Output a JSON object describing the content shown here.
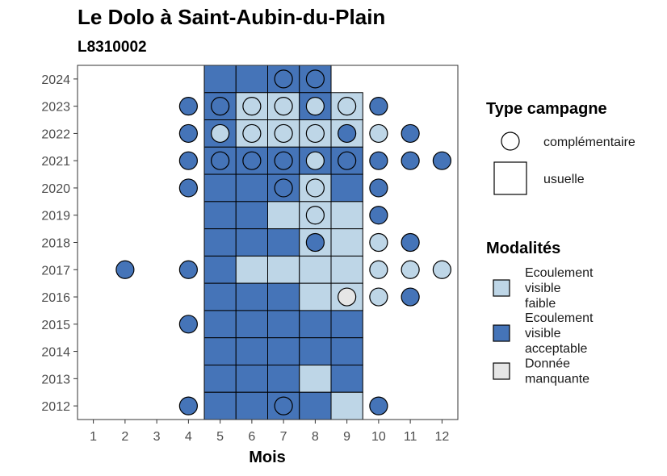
{
  "chart_data": {
    "type": "heatmap",
    "title": "Le Dolo à Saint-Aubin-du-Plain",
    "subtitle": "L8310002",
    "xlabel": "Mois",
    "ylabel": "",
    "x_ticks": [
      "1",
      "2",
      "3",
      "4",
      "5",
      "6",
      "7",
      "8",
      "9",
      "10",
      "11",
      "12"
    ],
    "y_ticks": [
      "2012",
      "2013",
      "2014",
      "2015",
      "2016",
      "2017",
      "2018",
      "2019",
      "2020",
      "2021",
      "2022",
      "2023",
      "2024"
    ],
    "xlim": [
      0.5,
      12.5
    ],
    "ylim": [
      2011.5,
      2024.5
    ],
    "grid": false,
    "legend_placement": "right",
    "colors": {
      "faible": "#bed6e7",
      "acceptable": "#4574b8",
      "manquante": "#e6e6e6",
      "border": "#000000"
    },
    "legend_shape": {
      "title": "Type campagne",
      "items": [
        {
          "shape": "circle",
          "label": "complémentaire"
        },
        {
          "shape": "square",
          "label": "usuelle"
        }
      ]
    },
    "legend_fill": {
      "title": "Modalités",
      "items": [
        {
          "key": "faible",
          "label_lines": [
            "Ecoulement",
            "visible",
            "faible"
          ]
        },
        {
          "key": "acceptable",
          "label_lines": [
            "Ecoulement",
            "visible",
            "acceptable"
          ]
        },
        {
          "key": "manquante",
          "label_lines": [
            "Donnée",
            "manquante"
          ]
        }
      ]
    },
    "usuelle": [
      {
        "year": 2024,
        "month": 5,
        "m": "acceptable"
      },
      {
        "year": 2024,
        "month": 6,
        "m": "acceptable"
      },
      {
        "year": 2024,
        "month": 7,
        "m": "acceptable"
      },
      {
        "year": 2024,
        "month": 8,
        "m": "acceptable"
      },
      {
        "year": 2023,
        "month": 5,
        "m": "acceptable"
      },
      {
        "year": 2023,
        "month": 6,
        "m": "faible"
      },
      {
        "year": 2023,
        "month": 7,
        "m": "faible"
      },
      {
        "year": 2023,
        "month": 8,
        "m": "acceptable"
      },
      {
        "year": 2023,
        "month": 9,
        "m": "faible"
      },
      {
        "year": 2022,
        "month": 5,
        "m": "acceptable"
      },
      {
        "year": 2022,
        "month": 6,
        "m": "faible"
      },
      {
        "year": 2022,
        "month": 7,
        "m": "faible"
      },
      {
        "year": 2022,
        "month": 8,
        "m": "faible"
      },
      {
        "year": 2022,
        "month": 9,
        "m": "faible"
      },
      {
        "year": 2021,
        "month": 5,
        "m": "acceptable"
      },
      {
        "year": 2021,
        "month": 6,
        "m": "acceptable"
      },
      {
        "year": 2021,
        "month": 7,
        "m": "acceptable"
      },
      {
        "year": 2021,
        "month": 8,
        "m": "acceptable"
      },
      {
        "year": 2021,
        "month": 9,
        "m": "acceptable"
      },
      {
        "year": 2020,
        "month": 5,
        "m": "acceptable"
      },
      {
        "year": 2020,
        "month": 6,
        "m": "acceptable"
      },
      {
        "year": 2020,
        "month": 7,
        "m": "acceptable"
      },
      {
        "year": 2020,
        "month": 8,
        "m": "faible"
      },
      {
        "year": 2020,
        "month": 9,
        "m": "acceptable"
      },
      {
        "year": 2019,
        "month": 5,
        "m": "acceptable"
      },
      {
        "year": 2019,
        "month": 6,
        "m": "acceptable"
      },
      {
        "year": 2019,
        "month": 7,
        "m": "faible"
      },
      {
        "year": 2019,
        "month": 8,
        "m": "faible"
      },
      {
        "year": 2019,
        "month": 9,
        "m": "faible"
      },
      {
        "year": 2018,
        "month": 5,
        "m": "acceptable"
      },
      {
        "year": 2018,
        "month": 6,
        "m": "acceptable"
      },
      {
        "year": 2018,
        "month": 7,
        "m": "acceptable"
      },
      {
        "year": 2018,
        "month": 8,
        "m": "faible"
      },
      {
        "year": 2018,
        "month": 9,
        "m": "faible"
      },
      {
        "year": 2017,
        "month": 5,
        "m": "acceptable"
      },
      {
        "year": 2017,
        "month": 6,
        "m": "faible"
      },
      {
        "year": 2017,
        "month": 7,
        "m": "faible"
      },
      {
        "year": 2017,
        "month": 8,
        "m": "faible"
      },
      {
        "year": 2017,
        "month": 9,
        "m": "faible"
      },
      {
        "year": 2016,
        "month": 5,
        "m": "acceptable"
      },
      {
        "year": 2016,
        "month": 6,
        "m": "acceptable"
      },
      {
        "year": 2016,
        "month": 7,
        "m": "acceptable"
      },
      {
        "year": 2016,
        "month": 8,
        "m": "faible"
      },
      {
        "year": 2016,
        "month": 9,
        "m": "faible"
      },
      {
        "year": 2015,
        "month": 5,
        "m": "acceptable"
      },
      {
        "year": 2015,
        "month": 6,
        "m": "acceptable"
      },
      {
        "year": 2015,
        "month": 7,
        "m": "acceptable"
      },
      {
        "year": 2015,
        "month": 8,
        "m": "acceptable"
      },
      {
        "year": 2015,
        "month": 9,
        "m": "acceptable"
      },
      {
        "year": 2014,
        "month": 5,
        "m": "acceptable"
      },
      {
        "year": 2014,
        "month": 6,
        "m": "acceptable"
      },
      {
        "year": 2014,
        "month": 7,
        "m": "acceptable"
      },
      {
        "year": 2014,
        "month": 8,
        "m": "acceptable"
      },
      {
        "year": 2014,
        "month": 9,
        "m": "acceptable"
      },
      {
        "year": 2013,
        "month": 5,
        "m": "acceptable"
      },
      {
        "year": 2013,
        "month": 6,
        "m": "acceptable"
      },
      {
        "year": 2013,
        "month": 7,
        "m": "acceptable"
      },
      {
        "year": 2013,
        "month": 8,
        "m": "faible"
      },
      {
        "year": 2013,
        "month": 9,
        "m": "acceptable"
      },
      {
        "year": 2012,
        "month": 5,
        "m": "acceptable"
      },
      {
        "year": 2012,
        "month": 6,
        "m": "acceptable"
      },
      {
        "year": 2012,
        "month": 7,
        "m": "acceptable"
      },
      {
        "year": 2012,
        "month": 8,
        "m": "acceptable"
      },
      {
        "year": 2012,
        "month": 9,
        "m": "faible"
      }
    ],
    "complementaire": [
      {
        "year": 2024,
        "month": 7,
        "m": "acceptable"
      },
      {
        "year": 2024,
        "month": 8,
        "m": "acceptable"
      },
      {
        "year": 2023,
        "month": 4,
        "m": "acceptable"
      },
      {
        "year": 2023,
        "month": 5,
        "m": "acceptable"
      },
      {
        "year": 2023,
        "month": 6,
        "m": "faible"
      },
      {
        "year": 2023,
        "month": 7,
        "m": "faible"
      },
      {
        "year": 2023,
        "month": 8,
        "m": "faible"
      },
      {
        "year": 2023,
        "month": 9,
        "m": "faible"
      },
      {
        "year": 2023,
        "month": 10,
        "m": "acceptable"
      },
      {
        "year": 2022,
        "month": 4,
        "m": "acceptable"
      },
      {
        "year": 2022,
        "month": 5,
        "m": "faible"
      },
      {
        "year": 2022,
        "month": 6,
        "m": "faible"
      },
      {
        "year": 2022,
        "month": 7,
        "m": "faible"
      },
      {
        "year": 2022,
        "month": 8,
        "m": "faible"
      },
      {
        "year": 2022,
        "month": 9,
        "m": "acceptable"
      },
      {
        "year": 2022,
        "month": 10,
        "m": "faible"
      },
      {
        "year": 2022,
        "month": 11,
        "m": "acceptable"
      },
      {
        "year": 2021,
        "month": 4,
        "m": "acceptable"
      },
      {
        "year": 2021,
        "month": 5,
        "m": "acceptable"
      },
      {
        "year": 2021,
        "month": 6,
        "m": "acceptable"
      },
      {
        "year": 2021,
        "month": 7,
        "m": "acceptable"
      },
      {
        "year": 2021,
        "month": 8,
        "m": "faible"
      },
      {
        "year": 2021,
        "month": 9,
        "m": "acceptable"
      },
      {
        "year": 2021,
        "month": 10,
        "m": "acceptable"
      },
      {
        "year": 2021,
        "month": 11,
        "m": "acceptable"
      },
      {
        "year": 2021,
        "month": 12,
        "m": "acceptable"
      },
      {
        "year": 2020,
        "month": 4,
        "m": "acceptable"
      },
      {
        "year": 2020,
        "month": 7,
        "m": "acceptable"
      },
      {
        "year": 2020,
        "month": 8,
        "m": "faible"
      },
      {
        "year": 2020,
        "month": 10,
        "m": "acceptable"
      },
      {
        "year": 2019,
        "month": 8,
        "m": "faible"
      },
      {
        "year": 2019,
        "month": 10,
        "m": "acceptable"
      },
      {
        "year": 2018,
        "month": 8,
        "m": "acceptable"
      },
      {
        "year": 2018,
        "month": 10,
        "m": "faible"
      },
      {
        "year": 2018,
        "month": 11,
        "m": "acceptable"
      },
      {
        "year": 2017,
        "month": 2,
        "m": "acceptable"
      },
      {
        "year": 2017,
        "month": 4,
        "m": "acceptable"
      },
      {
        "year": 2017,
        "month": 10,
        "m": "faible"
      },
      {
        "year": 2017,
        "month": 11,
        "m": "faible"
      },
      {
        "year": 2017,
        "month": 12,
        "m": "faible"
      },
      {
        "year": 2016,
        "month": 9,
        "m": "manquante"
      },
      {
        "year": 2016,
        "month": 10,
        "m": "faible"
      },
      {
        "year": 2016,
        "month": 11,
        "m": "acceptable"
      },
      {
        "year": 2015,
        "month": 4,
        "m": "acceptable"
      },
      {
        "year": 2012,
        "month": 4,
        "m": "acceptable"
      },
      {
        "year": 2012,
        "month": 7,
        "m": "acceptable"
      },
      {
        "year": 2012,
        "month": 10,
        "m": "acceptable"
      }
    ]
  }
}
